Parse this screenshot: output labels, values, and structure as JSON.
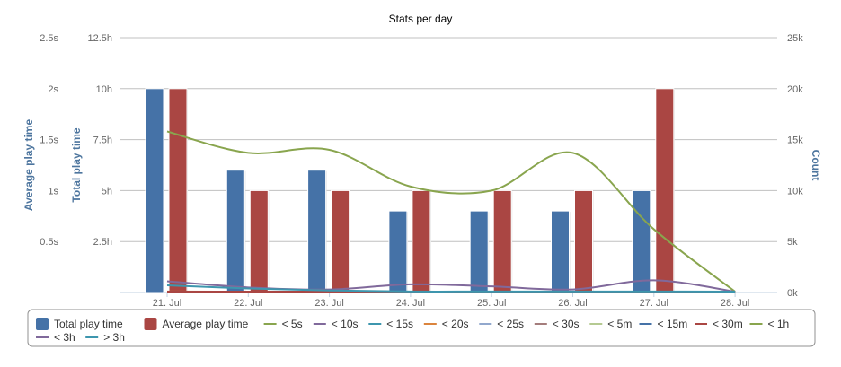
{
  "chart_data": {
    "type": "bar",
    "title": "Stats per day",
    "categories": [
      "21. Jul",
      "22. Jul",
      "23. Jul",
      "24. Jul",
      "25. Jul",
      "26. Jul",
      "27. Jul",
      "28. Jul"
    ],
    "axes": {
      "avg": {
        "label": "Average play time",
        "ticks": [
          "",
          "0.5s",
          "1s",
          "1.5s",
          "2s",
          "2.5s"
        ],
        "range": [
          0,
          2.5
        ],
        "unit": "s"
      },
      "total": {
        "label": "Total play time",
        "ticks": [
          "",
          "2.5h",
          "5h",
          "7.5h",
          "10h",
          "12.5h"
        ],
        "range": [
          0,
          12.5
        ],
        "unit": "h"
      },
      "count": {
        "label": "Count",
        "ticks": [
          "0k",
          "5k",
          "10k",
          "15k",
          "20k",
          "25k"
        ],
        "range": [
          0,
          25000
        ]
      }
    },
    "grid": true,
    "legend_position": "bottom",
    "bars": [
      {
        "name": "Total play time",
        "axis": "total",
        "color": "#4572A7",
        "values": [
          10,
          6,
          6,
          4,
          4,
          4,
          5,
          0
        ]
      },
      {
        "name": "Average play time",
        "axis": "avg",
        "color": "#AA4643",
        "values": [
          2,
          1,
          1,
          1,
          1,
          1,
          2,
          0
        ]
      }
    ],
    "lines": [
      {
        "name": "< 5s",
        "color": "#89A54E",
        "values": [
          0,
          0,
          0,
          0,
          0,
          0,
          0,
          0
        ]
      },
      {
        "name": "< 10s",
        "color": "#80699B",
        "values": [
          0,
          0,
          0,
          0,
          0,
          0,
          0,
          0
        ]
      },
      {
        "name": "< 15s",
        "color": "#3D96AE",
        "values": [
          0,
          0,
          0,
          0,
          0,
          0,
          0,
          0
        ]
      },
      {
        "name": "< 20s",
        "color": "#DB843D",
        "values": [
          100,
          80,
          60,
          50,
          50,
          40,
          40,
          0
        ]
      },
      {
        "name": "< 25s",
        "color": "#92A8CD",
        "values": [
          0,
          0,
          0,
          0,
          0,
          0,
          0,
          0
        ]
      },
      {
        "name": "< 30s",
        "color": "#A47D7C",
        "values": [
          0,
          0,
          0,
          0,
          0,
          0,
          0,
          0
        ]
      },
      {
        "name": "< 5m",
        "color": "#B5CA92",
        "values": [
          0,
          0,
          0,
          0,
          0,
          0,
          0,
          0
        ]
      },
      {
        "name": "< 15m",
        "color": "#4572A7",
        "values": [
          0,
          0,
          0,
          0,
          0,
          0,
          0,
          0
        ]
      },
      {
        "name": "< 30m",
        "color": "#AA4643",
        "values": [
          0,
          0,
          0,
          0,
          0,
          0,
          0,
          0
        ]
      },
      {
        "name": "< 1h",
        "color": "#89A54E",
        "values": [
          15800,
          13700,
          14000,
          10400,
          10000,
          13700,
          6200,
          0
        ]
      },
      {
        "name": "< 3h",
        "color": "#80699B",
        "values": [
          1100,
          500,
          300,
          800,
          600,
          300,
          1200,
          0
        ]
      },
      {
        "name": "> 3h",
        "color": "#3D96AE",
        "values": [
          700,
          400,
          200,
          100,
          100,
          100,
          100,
          0
        ]
      }
    ]
  }
}
